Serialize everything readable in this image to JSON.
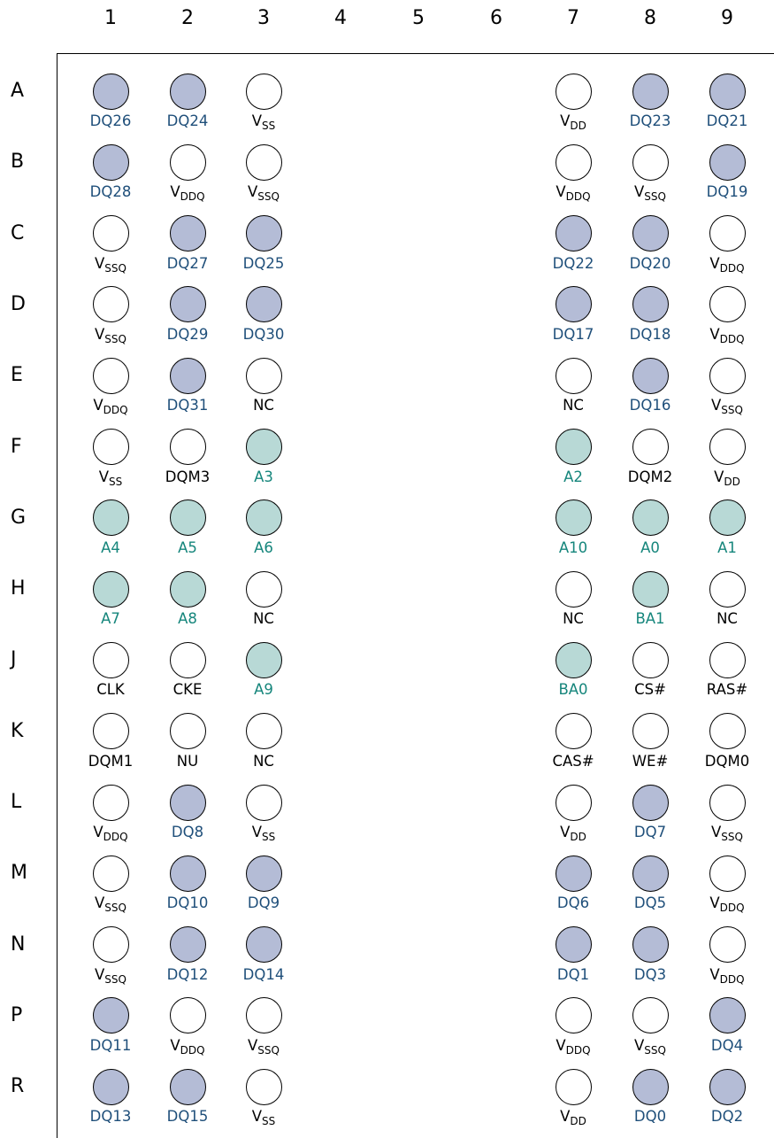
{
  "colors": {
    "data": "#b4bcd6",
    "data_text": "#1f4f7a",
    "address": "#b8d9d6",
    "address_text": "#16867c",
    "other": "#ffffff",
    "other_text": "#000000"
  },
  "column_headers": [
    "1",
    "2",
    "3",
    "4",
    "5",
    "6",
    "7",
    "8",
    "9"
  ],
  "row_headers": [
    "A",
    "B",
    "C",
    "D",
    "E",
    "F",
    "G",
    "H",
    "J",
    "K",
    "L",
    "M",
    "N",
    "P",
    "R"
  ],
  "balls": {
    "A": [
      [
        "DQ26",
        "",
        "data"
      ],
      [
        "DQ24",
        "",
        "data"
      ],
      [
        "V",
        "SS",
        "other"
      ],
      null,
      null,
      null,
      [
        "V",
        "DD",
        "other"
      ],
      [
        "DQ23",
        "",
        "data"
      ],
      [
        "DQ21",
        "",
        "data"
      ]
    ],
    "B": [
      [
        "DQ28",
        "",
        "data"
      ],
      [
        "V",
        "DDQ",
        "other"
      ],
      [
        "V",
        "SSQ",
        "other"
      ],
      null,
      null,
      null,
      [
        "V",
        "DDQ",
        "other"
      ],
      [
        "V",
        "SSQ",
        "other"
      ],
      [
        "DQ19",
        "",
        "data"
      ]
    ],
    "C": [
      [
        "V",
        "SSQ",
        "other"
      ],
      [
        "DQ27",
        "",
        "data"
      ],
      [
        "DQ25",
        "",
        "data"
      ],
      null,
      null,
      null,
      [
        "DQ22",
        "",
        "data"
      ],
      [
        "DQ20",
        "",
        "data"
      ],
      [
        "V",
        "DDQ",
        "other"
      ]
    ],
    "D": [
      [
        "V",
        "SSQ",
        "other"
      ],
      [
        "DQ29",
        "",
        "data"
      ],
      [
        "DQ30",
        "",
        "data"
      ],
      null,
      null,
      null,
      [
        "DQ17",
        "",
        "data"
      ],
      [
        "DQ18",
        "",
        "data"
      ],
      [
        "V",
        "DDQ",
        "other"
      ]
    ],
    "E": [
      [
        "V",
        "DDQ",
        "other"
      ],
      [
        "DQ31",
        "",
        "data"
      ],
      [
        "NC",
        "",
        "other"
      ],
      null,
      null,
      null,
      [
        "NC",
        "",
        "other"
      ],
      [
        "DQ16",
        "",
        "data"
      ],
      [
        "V",
        "SSQ",
        "other"
      ]
    ],
    "F": [
      [
        "V",
        "SS",
        "other"
      ],
      [
        "DQM3",
        "",
        "other"
      ],
      [
        "A3",
        "",
        "address"
      ],
      null,
      null,
      null,
      [
        "A2",
        "",
        "address"
      ],
      [
        "DQM2",
        "",
        "other"
      ],
      [
        "V",
        "DD",
        "other"
      ]
    ],
    "G": [
      [
        "A4",
        "",
        "address"
      ],
      [
        "A5",
        "",
        "address"
      ],
      [
        "A6",
        "",
        "address"
      ],
      null,
      null,
      null,
      [
        "A10",
        "",
        "address"
      ],
      [
        "A0",
        "",
        "address"
      ],
      [
        "A1",
        "",
        "address"
      ]
    ],
    "H": [
      [
        "A7",
        "",
        "address"
      ],
      [
        "A8",
        "",
        "address"
      ],
      [
        "NC",
        "",
        "other"
      ],
      null,
      null,
      null,
      [
        "NC",
        "",
        "other"
      ],
      [
        "BA1",
        "",
        "address"
      ],
      [
        "NC",
        "",
        "other"
      ]
    ],
    "J": [
      [
        "CLK",
        "",
        "other"
      ],
      [
        "CKE",
        "",
        "other"
      ],
      [
        "A9",
        "",
        "address"
      ],
      null,
      null,
      null,
      [
        "BA0",
        "",
        "address"
      ],
      [
        "CS#",
        "",
        "other"
      ],
      [
        "RAS#",
        "",
        "other"
      ]
    ],
    "K": [
      [
        "DQM1",
        "",
        "other"
      ],
      [
        "NU",
        "",
        "other"
      ],
      [
        "NC",
        "",
        "other"
      ],
      null,
      null,
      null,
      [
        "CAS#",
        "",
        "other"
      ],
      [
        "WE#",
        "",
        "other"
      ],
      [
        "DQM0",
        "",
        "other"
      ]
    ],
    "L": [
      [
        "V",
        "DDQ",
        "other"
      ],
      [
        "DQ8",
        "",
        "data"
      ],
      [
        "V",
        "SS",
        "other"
      ],
      null,
      null,
      null,
      [
        "V",
        "DD",
        "other"
      ],
      [
        "DQ7",
        "",
        "data"
      ],
      [
        "V",
        "SSQ",
        "other"
      ]
    ],
    "M": [
      [
        "V",
        "SSQ",
        "other"
      ],
      [
        "DQ10",
        "",
        "data"
      ],
      [
        "DQ9",
        "",
        "data"
      ],
      null,
      null,
      null,
      [
        "DQ6",
        "",
        "data"
      ],
      [
        "DQ5",
        "",
        "data"
      ],
      [
        "V",
        "DDQ",
        "other"
      ]
    ],
    "N": [
      [
        "V",
        "SSQ",
        "other"
      ],
      [
        "DQ12",
        "",
        "data"
      ],
      [
        "DQ14",
        "",
        "data"
      ],
      null,
      null,
      null,
      [
        "DQ1",
        "",
        "data"
      ],
      [
        "DQ3",
        "",
        "data"
      ],
      [
        "V",
        "DDQ",
        "other"
      ]
    ],
    "P": [
      [
        "DQ11",
        "",
        "data"
      ],
      [
        "V",
        "DDQ",
        "other"
      ],
      [
        "V",
        "SSQ",
        "other"
      ],
      null,
      null,
      null,
      [
        "V",
        "DDQ",
        "other"
      ],
      [
        "V",
        "SSQ",
        "other"
      ],
      [
        "DQ4",
        "",
        "data"
      ]
    ],
    "R": [
      [
        "DQ13",
        "",
        "data"
      ],
      [
        "DQ15",
        "",
        "data"
      ],
      [
        "V",
        "SS",
        "other"
      ],
      null,
      null,
      null,
      [
        "V",
        "DD",
        "other"
      ],
      [
        "DQ0",
        "",
        "data"
      ],
      [
        "DQ2",
        "",
        "data"
      ]
    ]
  }
}
